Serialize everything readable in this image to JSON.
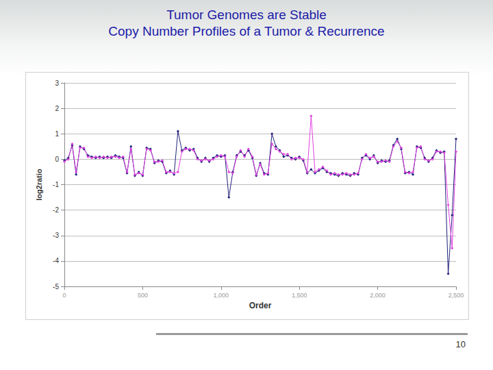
{
  "chart_data": {
    "type": "line",
    "title": "Tumor Genomes are Stable\nCopy Number Profiles of a Tumor & Recurrence",
    "x_label": "Order",
    "y_label": "log2ratio",
    "x": [
      0,
      25,
      50,
      75,
      100,
      125,
      150,
      175,
      200,
      225,
      250,
      275,
      300,
      325,
      350,
      375,
      400,
      425,
      450,
      475,
      500,
      525,
      550,
      575,
      600,
      625,
      650,
      675,
      700,
      725,
      750,
      775,
      800,
      825,
      850,
      875,
      900,
      925,
      950,
      975,
      1000,
      1025,
      1050,
      1075,
      1100,
      1125,
      1150,
      1175,
      1200,
      1225,
      1250,
      1275,
      1300,
      1325,
      1350,
      1375,
      1400,
      1425,
      1450,
      1475,
      1500,
      1525,
      1550,
      1575,
      1600,
      1625,
      1650,
      1675,
      1700,
      1725,
      1750,
      1775,
      1800,
      1825,
      1850,
      1875,
      1900,
      1925,
      1950,
      1975,
      2000,
      2025,
      2050,
      2075,
      2100,
      2125,
      2150,
      2175,
      2200,
      2225,
      2250,
      2275,
      2300,
      2325,
      2350,
      2375,
      2400,
      2425,
      2450,
      2475,
      2500
    ],
    "series": [
      {
        "color": "#1f1f7a",
        "marker": "diamond",
        "line_style": "solid",
        "values": [
          -0.05,
          0.05,
          0.55,
          -0.6,
          0.5,
          0.4,
          0.15,
          0.1,
          0.05,
          0.1,
          0.05,
          0.1,
          0.05,
          0.15,
          0.1,
          0.05,
          -0.55,
          0.5,
          -0.65,
          -0.5,
          -0.65,
          0.45,
          0.4,
          -0.15,
          -0.05,
          -0.1,
          -0.55,
          -0.45,
          -0.6,
          1.1,
          0.35,
          0.45,
          0.35,
          0.4,
          0.05,
          -0.1,
          0.05,
          -0.1,
          0.05,
          0.15,
          0.1,
          0.15,
          -1.5,
          -0.5,
          0.15,
          0.3,
          0.15,
          0.35,
          0.05,
          -0.65,
          -0.15,
          -0.55,
          -0.6,
          1.0,
          0.5,
          0.35,
          0.1,
          0.15,
          0.05,
          0.0,
          0.1,
          -0.05,
          -0.55,
          -0.4,
          -0.55,
          -0.45,
          -0.35,
          -0.5,
          -0.55,
          -0.6,
          -0.65,
          -0.55,
          -0.6,
          -0.65,
          -0.55,
          -0.6,
          0.05,
          0.15,
          0.0,
          0.15,
          -0.15,
          -0.05,
          -0.1,
          -0.05,
          0.55,
          0.8,
          0.4,
          -0.55,
          -0.5,
          -0.6,
          0.5,
          0.45,
          0.05,
          -0.1,
          0.05,
          0.35,
          0.25,
          0.3,
          -4.5,
          -2.2,
          0.8
        ]
      },
      {
        "color": "#e040e0",
        "marker": "diamond",
        "line_style": "solid",
        "values": [
          -0.1,
          0.0,
          0.6,
          -0.5,
          0.45,
          0.45,
          0.1,
          0.05,
          0.1,
          0.05,
          0.1,
          0.05,
          0.1,
          0.1,
          0.05,
          0.1,
          -0.5,
          0.4,
          -0.6,
          -0.55,
          -0.6,
          0.4,
          0.35,
          -0.1,
          -0.1,
          -0.05,
          -0.5,
          -0.5,
          -0.55,
          -0.5,
          0.3,
          0.4,
          0.4,
          0.35,
          0.0,
          -0.05,
          0.0,
          -0.05,
          0.0,
          0.1,
          0.15,
          0.1,
          -0.5,
          -0.55,
          0.1,
          0.35,
          0.1,
          0.4,
          0.1,
          -0.6,
          -0.2,
          -0.6,
          -0.55,
          0.6,
          0.4,
          0.3,
          0.2,
          0.2,
          0.0,
          0.05,
          0.05,
          0.0,
          -0.5,
          1.7,
          -0.5,
          -0.4,
          -0.3,
          -0.45,
          -0.6,
          -0.55,
          -0.6,
          -0.6,
          -0.55,
          -0.6,
          -0.6,
          -0.55,
          0.0,
          0.2,
          0.05,
          0.1,
          -0.1,
          -0.1,
          -0.05,
          -0.1,
          0.5,
          0.7,
          0.45,
          -0.5,
          -0.55,
          -0.5,
          0.45,
          0.5,
          0.0,
          -0.05,
          0.0,
          0.3,
          0.3,
          0.25,
          -1.8,
          -3.5,
          0.3
        ]
      }
    ],
    "xlim": [
      0,
      2500
    ],
    "xticks": [
      0,
      500,
      1000,
      1500,
      2000,
      2500
    ],
    "ylim": [
      -5,
      3
    ],
    "yticks": [
      -5,
      -4,
      -3,
      -2,
      -1,
      0,
      1,
      2,
      3
    ],
    "grid": true
  },
  "page_number": "10"
}
